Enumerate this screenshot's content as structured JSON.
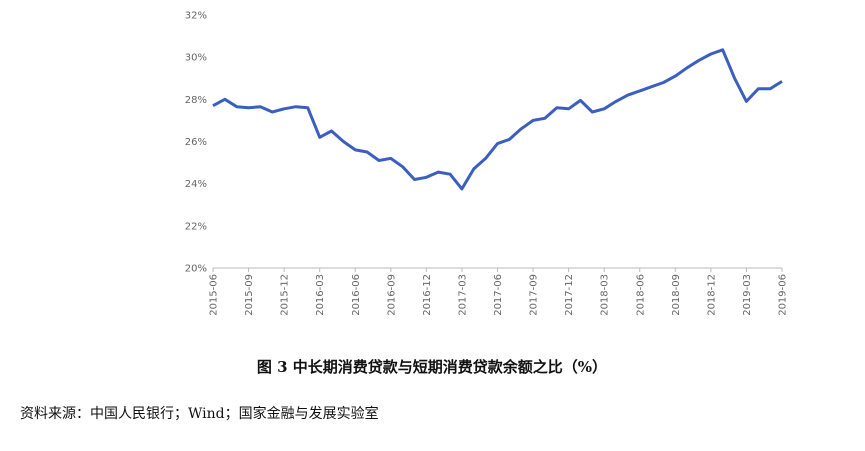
{
  "chart_data": {
    "type": "line",
    "title": "图 3  中长期消费贷款与短期消费贷款余额之比（%）",
    "source": "资料来源：中国人民银行；Wind；国家金融与发展实验室",
    "categories": [
      "2015-06",
      null,
      null,
      "2015-09",
      null,
      null,
      "2015-12",
      null,
      null,
      "2016-03",
      null,
      null,
      "2016-06",
      null,
      null,
      "2016-09",
      null,
      null,
      "2016-12",
      null,
      null,
      "2017-03",
      null,
      null,
      "2017-06",
      null,
      null,
      "2017-09",
      null,
      null,
      "2017-12",
      null,
      null,
      "2018-03",
      null,
      null,
      "2018-06",
      null,
      null,
      "2018-09",
      null,
      null,
      "2018-12",
      null,
      null,
      "2019-03",
      null,
      null,
      "2019-06"
    ],
    "series": [
      {
        "color": "#3a5fbe",
        "values": [
          27.7,
          28.0,
          27.65,
          27.6,
          27.65,
          27.4,
          27.55,
          27.65,
          27.6,
          26.2,
          26.5,
          26.0,
          25.6,
          25.5,
          25.1,
          25.2,
          24.8,
          24.2,
          24.3,
          24.55,
          24.45,
          23.75,
          24.7,
          25.2,
          25.9,
          26.1,
          26.6,
          27.0,
          27.1,
          27.6,
          27.55,
          27.95,
          27.4,
          27.55,
          27.9,
          28.2,
          28.4,
          28.6,
          28.8,
          29.1,
          29.5,
          29.85,
          30.15,
          30.35,
          29.0,
          27.9,
          28.5,
          28.5,
          28.85
        ]
      }
    ],
    "ylim": [
      20,
      32
    ],
    "yticks": [
      {
        "value": 20,
        "label": "20%"
      },
      {
        "value": 22,
        "label": "22%"
      },
      {
        "value": 24,
        "label": "24%"
      },
      {
        "value": 26,
        "label": "26%"
      },
      {
        "value": 28,
        "label": "28%"
      },
      {
        "value": 30,
        "label": "30%"
      },
      {
        "value": 32,
        "label": "32%"
      }
    ],
    "grid": false
  }
}
